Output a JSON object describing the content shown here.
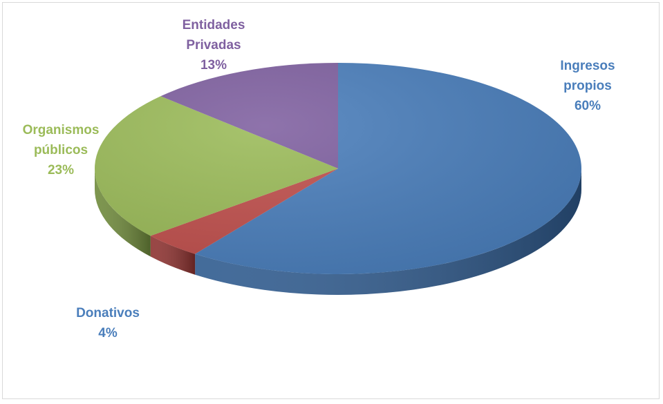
{
  "chart_data": {
    "type": "pie",
    "title": "",
    "three_d": true,
    "slices": [
      {
        "label_lines": [
          "Ingresos",
          "propios"
        ],
        "percent_text": "60%",
        "value": 60,
        "color": "#4a7ebb",
        "side_color": "#2f5b8f",
        "label_color": "#4a7ebb"
      },
      {
        "label_lines": [
          "Donativos"
        ],
        "percent_text": "4%",
        "value": 4,
        "color": "#c0504d",
        "side_color": "#8e3230",
        "label_color": "#4a7ebb"
      },
      {
        "label_lines": [
          "Organismos",
          "públicos"
        ],
        "percent_text": "23%",
        "value": 23,
        "color": "#9bbb59",
        "side_color": "#6f8a3b",
        "label_color": "#9bbb59"
      },
      {
        "label_lines": [
          "Entidades",
          "Privadas"
        ],
        "percent_text": "13%",
        "value": 13,
        "color": "#7f60a0",
        "side_color": "#5a4275",
        "label_color": "#7f60a0"
      }
    ]
  }
}
